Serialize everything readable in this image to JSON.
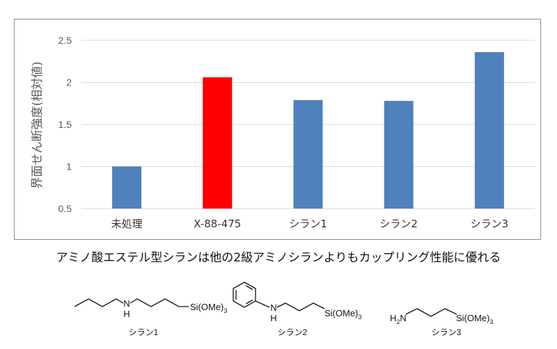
{
  "chart_data": {
    "type": "bar",
    "ylabel": "界面せん断強度(相対値)",
    "categories": [
      "未処理",
      "X-88-475",
      "シラン1",
      "シラン2",
      "シラン3"
    ],
    "values": [
      1.0,
      2.06,
      1.79,
      1.78,
      2.36
    ],
    "bar_colors": [
      "#4f81bd",
      "#ff0000",
      "#4f81bd",
      "#4f81bd",
      "#4f81bd"
    ],
    "ylim": [
      0.5,
      2.5
    ],
    "yticks": [
      "0.5",
      "1",
      "1.5",
      "2",
      "2.5"
    ],
    "grid": true
  },
  "caption": "アミノ酸エステル型シランは他の2級アミノシランよりもカップリング性能に優れる",
  "structures": [
    {
      "name": "シラン1",
      "si_group": "Si(OMe)",
      "subscript": "3",
      "amine": "N",
      "amine_h": "H"
    },
    {
      "name": "シラン2",
      "si_group": "Si(OMe)",
      "subscript": "3",
      "amine": "N",
      "amine_h": "H"
    },
    {
      "name": "シラン3",
      "si_group": "Si(OMe)",
      "subscript": "3",
      "amine": "H",
      "amine_sub": "2",
      "amine_n": "N"
    }
  ]
}
